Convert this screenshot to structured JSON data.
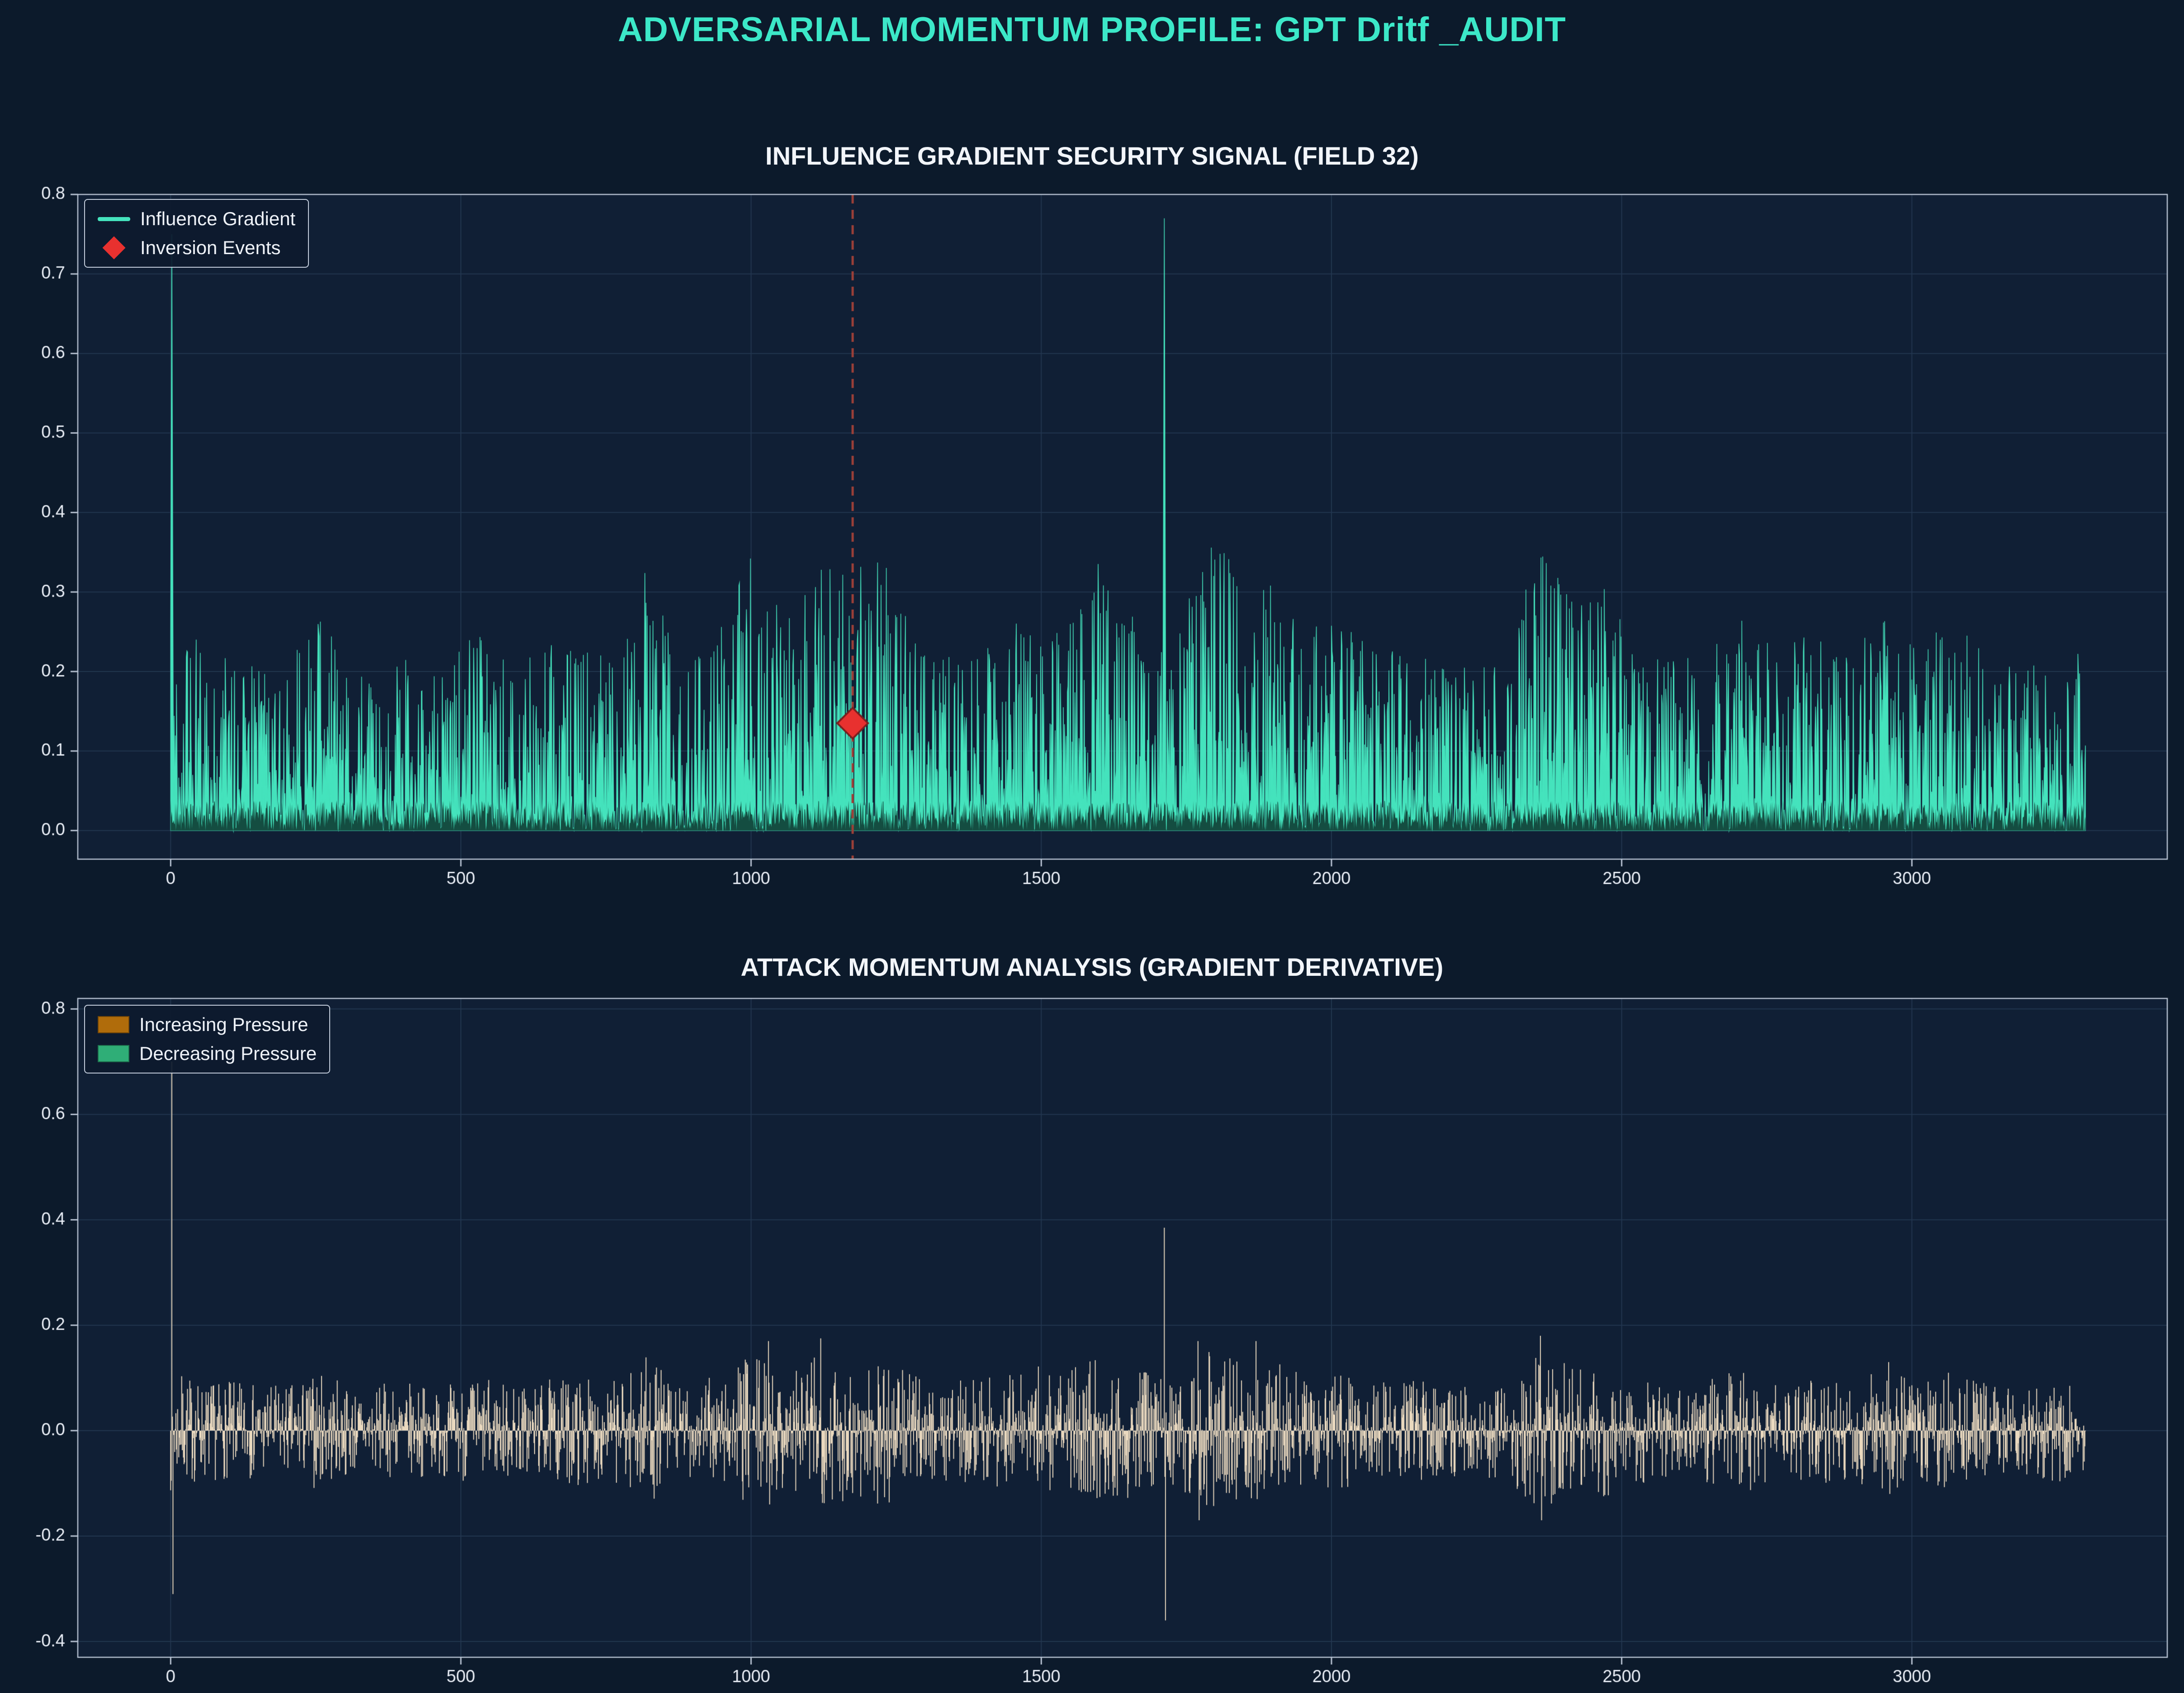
{
  "page": {
    "title": "ADVERSARIAL MOMENTUM PROFILE: GPT Dritf _AUDIT"
  },
  "colors": {
    "background": "#0c1a2b",
    "axes_bg": "#101f35",
    "grid": "#233750",
    "spine": "#b9c4d4",
    "tick_label": "#e8edf5",
    "title": "#3ce8c8",
    "subplot_title": "#f2f5fa",
    "signal": "#45e3bd",
    "signal_dark": "#0e3c33",
    "vline": "#9c4038",
    "diamond": "#e8312f",
    "diamond_edge": "#7a1f1e",
    "derivative": "#ead9bf",
    "legend_inc": "#b06c0b",
    "legend_dec": "#2fae77"
  },
  "chart_data": [
    {
      "type": "area",
      "title": "INFLUENCE GRADIENT SECURITY SIGNAL (FIELD 32)",
      "legend": [
        "Influence Gradient",
        "Inversion Events"
      ],
      "legend_position": "upper-left",
      "grid": true,
      "n_points": 3300,
      "x_range": [
        0,
        3300
      ],
      "xlim": [
        -160,
        3440
      ],
      "ylim": [
        -0.036,
        0.8
      ],
      "x_ticks": [
        0,
        500,
        1000,
        1500,
        2000,
        2500,
        3000
      ],
      "y_ticks": [
        0.0,
        0.1,
        0.2,
        0.3,
        0.4,
        0.5,
        0.6,
        0.7,
        0.8
      ],
      "noise": {
        "seed": 42,
        "shape_power": 2.2
      },
      "envelope": [
        [
          0,
          0.28
        ],
        [
          60,
          0.23
        ],
        [
          120,
          0.22
        ],
        [
          200,
          0.21
        ],
        [
          255,
          0.27
        ],
        [
          320,
          0.2
        ],
        [
          400,
          0.22
        ],
        [
          460,
          0.2
        ],
        [
          520,
          0.25
        ],
        [
          560,
          0.23
        ],
        [
          620,
          0.22
        ],
        [
          700,
          0.25
        ],
        [
          760,
          0.22
        ],
        [
          820,
          0.34
        ],
        [
          880,
          0.2
        ],
        [
          940,
          0.25
        ],
        [
          1000,
          0.36
        ],
        [
          1060,
          0.26
        ],
        [
          1100,
          0.35
        ],
        [
          1170,
          0.33
        ],
        [
          1230,
          0.35
        ],
        [
          1300,
          0.22
        ],
        [
          1360,
          0.23
        ],
        [
          1420,
          0.25
        ],
        [
          1480,
          0.3
        ],
        [
          1540,
          0.26
        ],
        [
          1600,
          0.35
        ],
        [
          1650,
          0.31
        ],
        [
          1700,
          0.24
        ],
        [
          1760,
          0.3
        ],
        [
          1800,
          0.38
        ],
        [
          1850,
          0.3
        ],
        [
          1900,
          0.33
        ],
        [
          1950,
          0.25
        ],
        [
          2000,
          0.27
        ],
        [
          2060,
          0.24
        ],
        [
          2120,
          0.23
        ],
        [
          2180,
          0.22
        ],
        [
          2240,
          0.21
        ],
        [
          2300,
          0.22
        ],
        [
          2360,
          0.37
        ],
        [
          2420,
          0.28
        ],
        [
          2470,
          0.32
        ],
        [
          2530,
          0.24
        ],
        [
          2590,
          0.22
        ],
        [
          2650,
          0.24
        ],
        [
          2710,
          0.28
        ],
        [
          2770,
          0.23
        ],
        [
          2830,
          0.25
        ],
        [
          2890,
          0.22
        ],
        [
          2950,
          0.28
        ],
        [
          3010,
          0.23
        ],
        [
          3070,
          0.27
        ],
        [
          3130,
          0.22
        ],
        [
          3190,
          0.2
        ],
        [
          3250,
          0.23
        ],
        [
          3300,
          0.22
        ]
      ],
      "spikes": [
        {
          "x": 2,
          "v": 0.75
        },
        {
          "x": 1712,
          "v": 0.77
        }
      ],
      "inversion_event": {
        "x": 1175,
        "y": 0.135
      },
      "vline_x": 1175
    },
    {
      "type": "diff",
      "title": "ATTACK MOMENTUM ANALYSIS (GRADIENT DERIVATIVE)",
      "legend": [
        "Increasing Pressure",
        "Decreasing Pressure"
      ],
      "legend_position": "upper-left",
      "grid": true,
      "n_points": 3300,
      "x_range": [
        0,
        3300
      ],
      "xlim": [
        -160,
        3440
      ],
      "ylim": [
        -0.43,
        0.82
      ],
      "x_ticks": [
        0,
        500,
        1000,
        1500,
        2000,
        2500,
        3000
      ],
      "y_ticks": [
        -0.4,
        -0.2,
        0.0,
        0.2,
        0.4,
        0.6,
        0.8
      ],
      "noise": {
        "seed": 7,
        "shape_power": 1.6,
        "amp_scale": 0.42
      },
      "spikes": [
        {
          "x": 2,
          "up": 0.7,
          "down": -0.31
        },
        {
          "x": 1030,
          "up": 0.17,
          "down": -0.14
        },
        {
          "x": 1120,
          "up": 0.175,
          "down": -0.12
        },
        {
          "x": 1712,
          "up": 0.385,
          "down": -0.36
        },
        {
          "x": 1770,
          "up": 0.17,
          "down": -0.17
        },
        {
          "x": 1870,
          "up": 0.17,
          "down": -0.13
        },
        {
          "x": 2360,
          "up": 0.18,
          "down": -0.17
        },
        {
          "x": 2960,
          "up": 0.13,
          "down": -0.12
        }
      ]
    }
  ]
}
